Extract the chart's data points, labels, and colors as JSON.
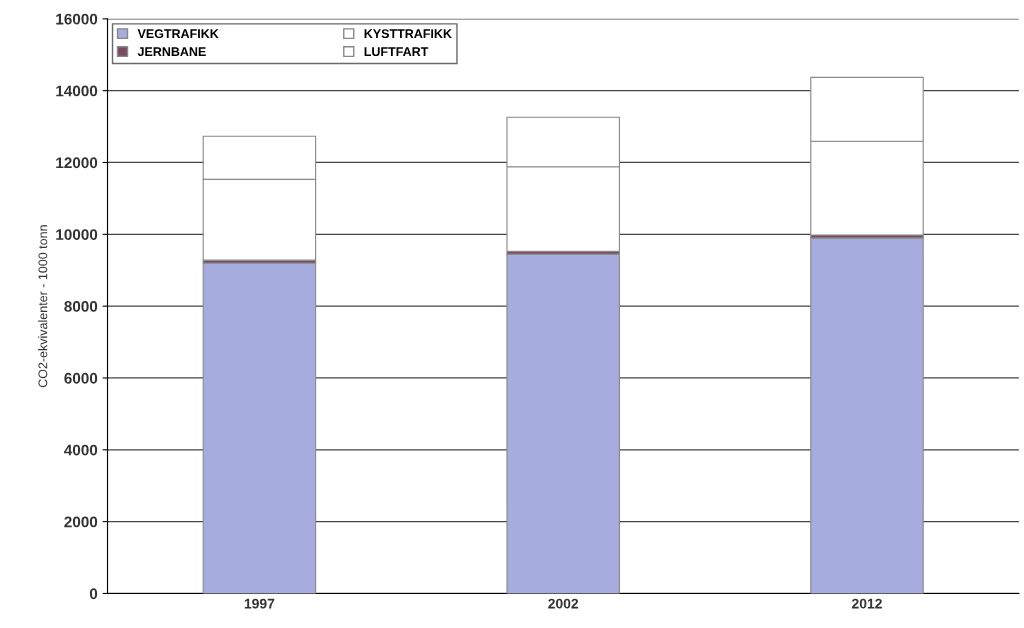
{
  "chart_data": {
    "type": "bar",
    "stacked": true,
    "ylabel": "CO2-ekvivalenter - 1000 tonn",
    "categories": [
      "1997",
      "2002",
      "2012"
    ],
    "series": [
      {
        "name": "VEGTRAFIKK",
        "color": "#a7acde",
        "values": [
          9200,
          9450,
          9900
        ]
      },
      {
        "name": "JERNBANE",
        "color": "#7b4a5e",
        "values": [
          80,
          80,
          80
        ]
      },
      {
        "name": "KYSTTRAFIKK",
        "color": "#ffffff",
        "values": [
          2250,
          2350,
          2610
        ]
      },
      {
        "name": "LUFTFART",
        "color": "#ffffff",
        "values": [
          1200,
          1380,
          1780
        ]
      }
    ],
    "ylim": [
      0,
      16000
    ],
    "yticks": [
      0,
      2000,
      4000,
      6000,
      8000,
      10000,
      12000,
      14000,
      16000
    ],
    "grid": "y",
    "legend": "top left"
  }
}
